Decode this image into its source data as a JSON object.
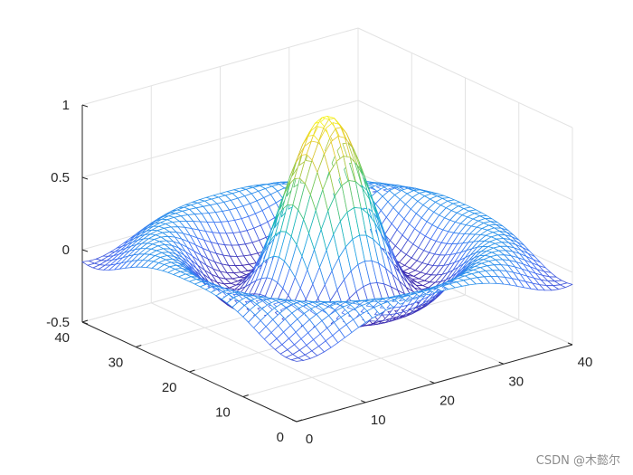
{
  "chart_data": {
    "type": "mesh",
    "title": "",
    "xlabel": "",
    "ylabel": "",
    "zlabel": "",
    "grid": true,
    "box": true,
    "colormap": "parula",
    "colormap_stops": [
      "#3e26a8",
      "#4370f5",
      "#1fa2e5",
      "#17bda9",
      "#7bc94f",
      "#e2c52f",
      "#f9fb15"
    ],
    "surface": {
      "function": "sinc",
      "grid_size": 41,
      "x_range": [
        0,
        40
      ],
      "y_range": [
        0,
        40
      ],
      "center": [
        20,
        20
      ],
      "peak": 1.0,
      "min": -0.22
    },
    "xlim": [
      0,
      40
    ],
    "ylim": [
      0,
      40
    ],
    "zlim": [
      -0.5,
      1
    ],
    "xticks": [
      0,
      10,
      20,
      30,
      40
    ],
    "yticks": [
      0,
      10,
      20,
      30,
      40
    ],
    "zticks": [
      -0.5,
      0,
      0.5,
      1
    ],
    "xtick_labels": [
      "0",
      "10",
      "20",
      "30",
      "40"
    ],
    "ytick_labels": [
      "0",
      "10",
      "20",
      "30",
      "40"
    ],
    "ztick_labels": [
      "-0.5",
      "0",
      "0.5",
      "1"
    ]
  },
  "watermark": "CSDN @木懿尔"
}
